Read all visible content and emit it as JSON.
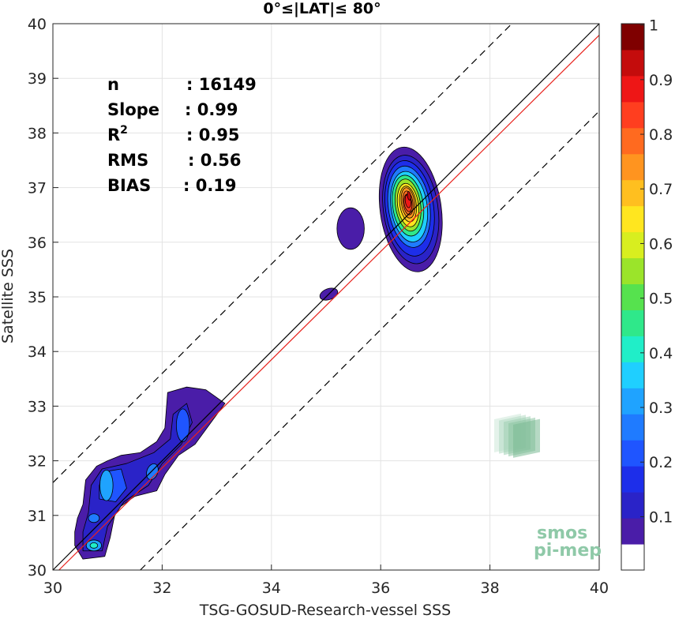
{
  "chart_data": {
    "type": "heatmap",
    "subtype": "filled-contour density scatter",
    "title": "0°≤|LAT|≤ 80°",
    "xlabel": "TSG-GOSUD-Research-vessel SSS",
    "ylabel": "Satellite SSS",
    "xlim": [
      30,
      40
    ],
    "ylim": [
      30,
      40
    ],
    "xticks": [
      30,
      32,
      34,
      36,
      38,
      40
    ],
    "yticks": [
      30,
      31,
      32,
      33,
      34,
      35,
      36,
      37,
      38,
      39,
      40
    ],
    "grid": true,
    "stats": [
      {
        "label": "n",
        "value": ": 16149"
      },
      {
        "label": "Slope",
        "value": ": 0.99"
      },
      {
        "label": "R",
        "sup": "2",
        "value": ": 0.95"
      },
      {
        "label": "RMS",
        "value": ": 0.56"
      },
      {
        "label": "BIAS",
        "value": ": 0.19"
      }
    ],
    "reference_lines": [
      {
        "name": "1:1",
        "color": "#000000",
        "style": "solid",
        "offset": 0
      },
      {
        "name": "fit",
        "color": "#e8221c",
        "style": "solid",
        "slope": 0.99,
        "offset": 0.19
      },
      {
        "name": "upper bound",
        "color": "#000000",
        "style": "dashed",
        "offset": 1.6
      },
      {
        "name": "lower bound",
        "color": "#000000",
        "style": "dashed",
        "offset": -1.6
      }
    ],
    "clusters": [
      {
        "x": 36.5,
        "y": 36.6,
        "peak": 1.0
      },
      {
        "x": 35.45,
        "y": 36.25,
        "peak": 0.1
      },
      {
        "x": 35.05,
        "y": 35.05,
        "peak": 0.1
      },
      {
        "x": 32.4,
        "y": 32.6,
        "peak": 0.3
      },
      {
        "x": 31.8,
        "y": 31.8,
        "peak": 0.3
      },
      {
        "x": 31.0,
        "y": 31.5,
        "peak": 0.35
      },
      {
        "x": 30.75,
        "y": 30.45,
        "peak": 0.4
      }
    ],
    "colorbar": {
      "ticks": [
        0.1,
        0.2,
        0.3,
        0.4,
        0.5,
        0.6,
        0.7,
        0.8,
        0.9,
        1
      ],
      "tick_labels": [
        "0.1",
        "0.2",
        "0.3",
        "0.4",
        "0.5",
        "0.6",
        "0.7",
        "0.8",
        "0.9",
        "1"
      ],
      "range": [
        0,
        1
      ],
      "colors": [
        "#ffffff",
        "#4a1da8",
        "#2a23c8",
        "#1d2eea",
        "#1f55ff",
        "#1f7bff",
        "#1fa3ff",
        "#1fcfff",
        "#20eec8",
        "#2fe88a",
        "#56e24e",
        "#9be42a",
        "#d8ee1f",
        "#ffe61f",
        "#ffbf1f",
        "#ff941f",
        "#ff6a1f",
        "#ff3e1f",
        "#ee1616",
        "#c40c0c",
        "#7f0000"
      ]
    },
    "logo": {
      "line1": "smos",
      "line2": "pi-mep"
    }
  }
}
